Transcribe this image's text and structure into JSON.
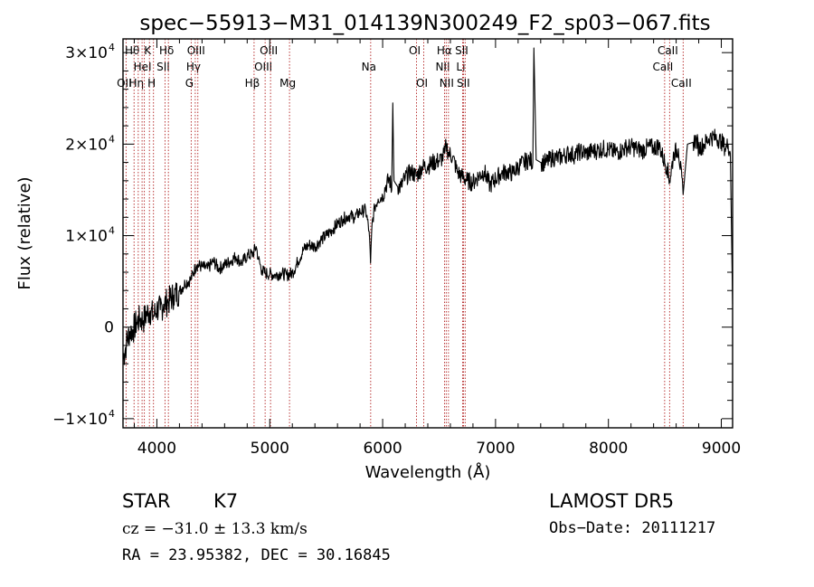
{
  "chart_data": {
    "type": "line",
    "title": "spec−55913−M31_014139N300249_F2_sp03−067.fits",
    "xlabel": "Wavelength (Å)",
    "ylabel": "Flux (relative)",
    "xlim": [
      3700,
      9100
    ],
    "ylim": [
      -11000,
      31500
    ],
    "x_ticks": [
      {
        "value": 4000,
        "label": "4000"
      },
      {
        "value": 5000,
        "label": "5000"
      },
      {
        "value": 6000,
        "label": "6000"
      },
      {
        "value": 7000,
        "label": "7000"
      },
      {
        "value": 8000,
        "label": "8000"
      },
      {
        "value": 9000,
        "label": "9000"
      }
    ],
    "y_ticks": [
      {
        "value": -10000,
        "label": "−1×10",
        "exp": "4"
      },
      {
        "value": 0,
        "label": "0",
        "exp": ""
      },
      {
        "value": 10000,
        "label": "1×10",
        "exp": "4"
      },
      {
        "value": 20000,
        "label": "2×10",
        "exp": "4"
      },
      {
        "value": 30000,
        "label": "3×10",
        "exp": "4"
      }
    ],
    "grid": false,
    "series": [
      {
        "color": "#000000",
        "x": [
          3700,
          3730,
          3760,
          3790,
          3820,
          3850,
          3880,
          3910,
          3940,
          3970,
          4000,
          4030,
          4060,
          4100,
          4150,
          4200,
          4250,
          4300,
          4350,
          4400,
          4450,
          4500,
          4550,
          4600,
          4650,
          4700,
          4750,
          4800,
          4850,
          4880,
          4900,
          4930,
          4960,
          5000,
          5050,
          5100,
          5150,
          5200,
          5250,
          5300,
          5350,
          5400,
          5450,
          5500,
          5550,
          5600,
          5650,
          5700,
          5750,
          5800,
          5850,
          5880,
          5893,
          5906,
          5930,
          5960,
          6000,
          6030,
          6060,
          6080,
          6090,
          6100,
          6130,
          6160,
          6200,
          6250,
          6300,
          6350,
          6400,
          6450,
          6500,
          6530,
          6550,
          6563,
          6580,
          6620,
          6660,
          6700,
          6750,
          6800,
          6850,
          6900,
          6950,
          7000,
          7050,
          7100,
          7150,
          7200,
          7250,
          7300,
          7330,
          7340,
          7360,
          7400,
          7450,
          7500,
          7550,
          7600,
          7650,
          7700,
          7750,
          7800,
          7850,
          7900,
          7950,
          8000,
          8050,
          8100,
          8150,
          8200,
          8250,
          8300,
          8350,
          8400,
          8450,
          8498,
          8520,
          8542,
          8580,
          8620,
          8662,
          8700,
          8750,
          8780,
          8800,
          8850,
          8900,
          8950,
          9000,
          9040,
          9060,
          9080,
          9100
        ],
        "values": [
          -3500,
          -1800,
          -500,
          -300,
          500,
          900,
          700,
          1500,
          1800,
          1200,
          2000,
          1900,
          2500,
          2800,
          3500,
          3900,
          4800,
          5200,
          6800,
          6600,
          6400,
          7200,
          6400,
          6800,
          7200,
          7700,
          7000,
          7800,
          8000,
          8800,
          7400,
          6200,
          5900,
          5800,
          5700,
          5900,
          5700,
          5900,
          7200,
          8500,
          9000,
          8800,
          9500,
          10000,
          10600,
          11300,
          11800,
          12200,
          12000,
          12600,
          12800,
          10500,
          7000,
          11200,
          13100,
          14000,
          14300,
          15500,
          16200,
          15000,
          24500,
          16000,
          15400,
          15300,
          16300,
          17000,
          16500,
          17500,
          17600,
          18000,
          18200,
          18500,
          19000,
          20000,
          19100,
          18600,
          17000,
          16500,
          16000,
          15800,
          16500,
          17000,
          15500,
          16200,
          16800,
          17000,
          16800,
          17500,
          18000,
          18300,
          18000,
          30500,
          18300,
          18000,
          18000,
          18500,
          18500,
          18700,
          19000,
          18800,
          19200,
          19000,
          19200,
          19300,
          19500,
          19400,
          19100,
          19200,
          19600,
          19700,
          19500,
          19300,
          19700,
          19600,
          19800,
          18000,
          17500,
          16000,
          19000,
          19500,
          14500,
          20000,
          20200,
          20500,
          19500,
          20000,
          20800,
          20700,
          20300,
          19500,
          20000,
          19000,
          2500
        ]
      }
    ],
    "line_markers": {
      "color": "#b22222",
      "lines": [
        {
          "x": 3727,
          "label": "OII",
          "row": 2
        },
        {
          "x": 3798,
          "label": "Hθ",
          "row": 0
        },
        {
          "x": 3835,
          "label": "Hη",
          "row": 2
        },
        {
          "x": 3869,
          "label": "",
          "row": 0
        },
        {
          "x": 3889,
          "label": "HeI",
          "row": 1
        },
        {
          "x": 3934,
          "label": "K",
          "row": 0
        },
        {
          "x": 3970,
          "label": "H",
          "row": 2
        },
        {
          "x": 4072,
          "label": "SII",
          "row": 1
        },
        {
          "x": 4102,
          "label": "Hδ",
          "row": 0
        },
        {
          "x": 4304,
          "label": "G",
          "row": 2
        },
        {
          "x": 4340,
          "label": "Hγ",
          "row": 1
        },
        {
          "x": 4363,
          "label": "OIII",
          "row": 0
        },
        {
          "x": 4861,
          "label": "Hβ",
          "row": 2
        },
        {
          "x": 4959,
          "label": "OIII",
          "row": 1
        },
        {
          "x": 5007,
          "label": "OIII",
          "row": 0
        },
        {
          "x": 5175,
          "label": "Mg",
          "row": 2
        },
        {
          "x": 5894,
          "label": "Na",
          "row": 1
        },
        {
          "x": 6300,
          "label": "OI",
          "row": 0
        },
        {
          "x": 6364,
          "label": "OI",
          "row": 2
        },
        {
          "x": 6548,
          "label": "NII",
          "row": 1
        },
        {
          "x": 6563,
          "label": "Hα",
          "row": 0
        },
        {
          "x": 6583,
          "label": "NII",
          "row": 2
        },
        {
          "x": 6708,
          "label": "Li",
          "row": 1
        },
        {
          "x": 6716,
          "label": "SII",
          "row": 0
        },
        {
          "x": 6731,
          "label": "SII",
          "row": 2
        },
        {
          "x": 8498,
          "label": "CaII",
          "row": 1
        },
        {
          "x": 8542,
          "label": "CaII",
          "row": 0
        },
        {
          "x": 8662,
          "label": "CaII",
          "row": 2
        }
      ]
    }
  },
  "info": {
    "object_class": "STAR",
    "subclass": "K7",
    "survey": "LAMOST  DR5",
    "cz": "cz = −31.0 ± 13.3 km/s",
    "obs_date": "Obs−Date: 20111217",
    "coords": "RA =  23.95382, DEC =  30.16845"
  }
}
